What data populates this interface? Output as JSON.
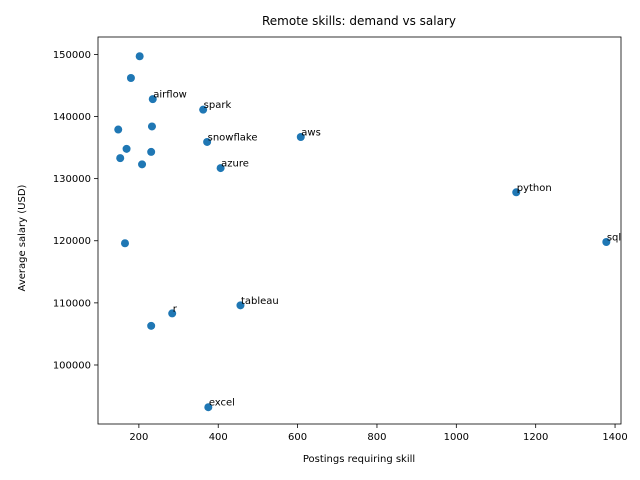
{
  "chart_data": {
    "type": "scatter",
    "title": "Remote skills: demand vs salary",
    "xlabel": "Postings requiring skill",
    "ylabel": "Average salary (USD)",
    "xlim": [
      97,
      1415
    ],
    "ylim": [
      90500,
      152800
    ],
    "xticks": [
      200,
      400,
      600,
      800,
      1000,
      1200,
      1400
    ],
    "yticks": [
      100000,
      110000,
      120000,
      130000,
      140000,
      150000
    ],
    "grid": false,
    "legend": "none",
    "marker_color": "#1f77b4",
    "points": [
      {
        "x": 1378,
        "y": 119800,
        "label": "sql"
      },
      {
        "x": 1151,
        "y": 127800,
        "label": "python"
      },
      {
        "x": 608,
        "y": 136700,
        "label": "aws"
      },
      {
        "x": 456,
        "y": 109600,
        "label": "tableau"
      },
      {
        "x": 406,
        "y": 131700,
        "label": "azure"
      },
      {
        "x": 375,
        "y": 93200,
        "label": "excel"
      },
      {
        "x": 372,
        "y": 135900,
        "label": "snowflake"
      },
      {
        "x": 362,
        "y": 141100,
        "label": "spark"
      },
      {
        "x": 284,
        "y": 108300,
        "label": "r"
      },
      {
        "x": 235,
        "y": 142800,
        "label": "airflow"
      },
      {
        "x": 233,
        "y": 138400,
        "label": ""
      },
      {
        "x": 231,
        "y": 134300,
        "label": ""
      },
      {
        "x": 231,
        "y": 106300,
        "label": ""
      },
      {
        "x": 208,
        "y": 132300,
        "label": ""
      },
      {
        "x": 202,
        "y": 149700,
        "label": ""
      },
      {
        "x": 180,
        "y": 146200,
        "label": ""
      },
      {
        "x": 169,
        "y": 134800,
        "label": ""
      },
      {
        "x": 165,
        "y": 119600,
        "label": ""
      },
      {
        "x": 153,
        "y": 133300,
        "label": ""
      },
      {
        "x": 148,
        "y": 137900,
        "label": ""
      }
    ]
  }
}
